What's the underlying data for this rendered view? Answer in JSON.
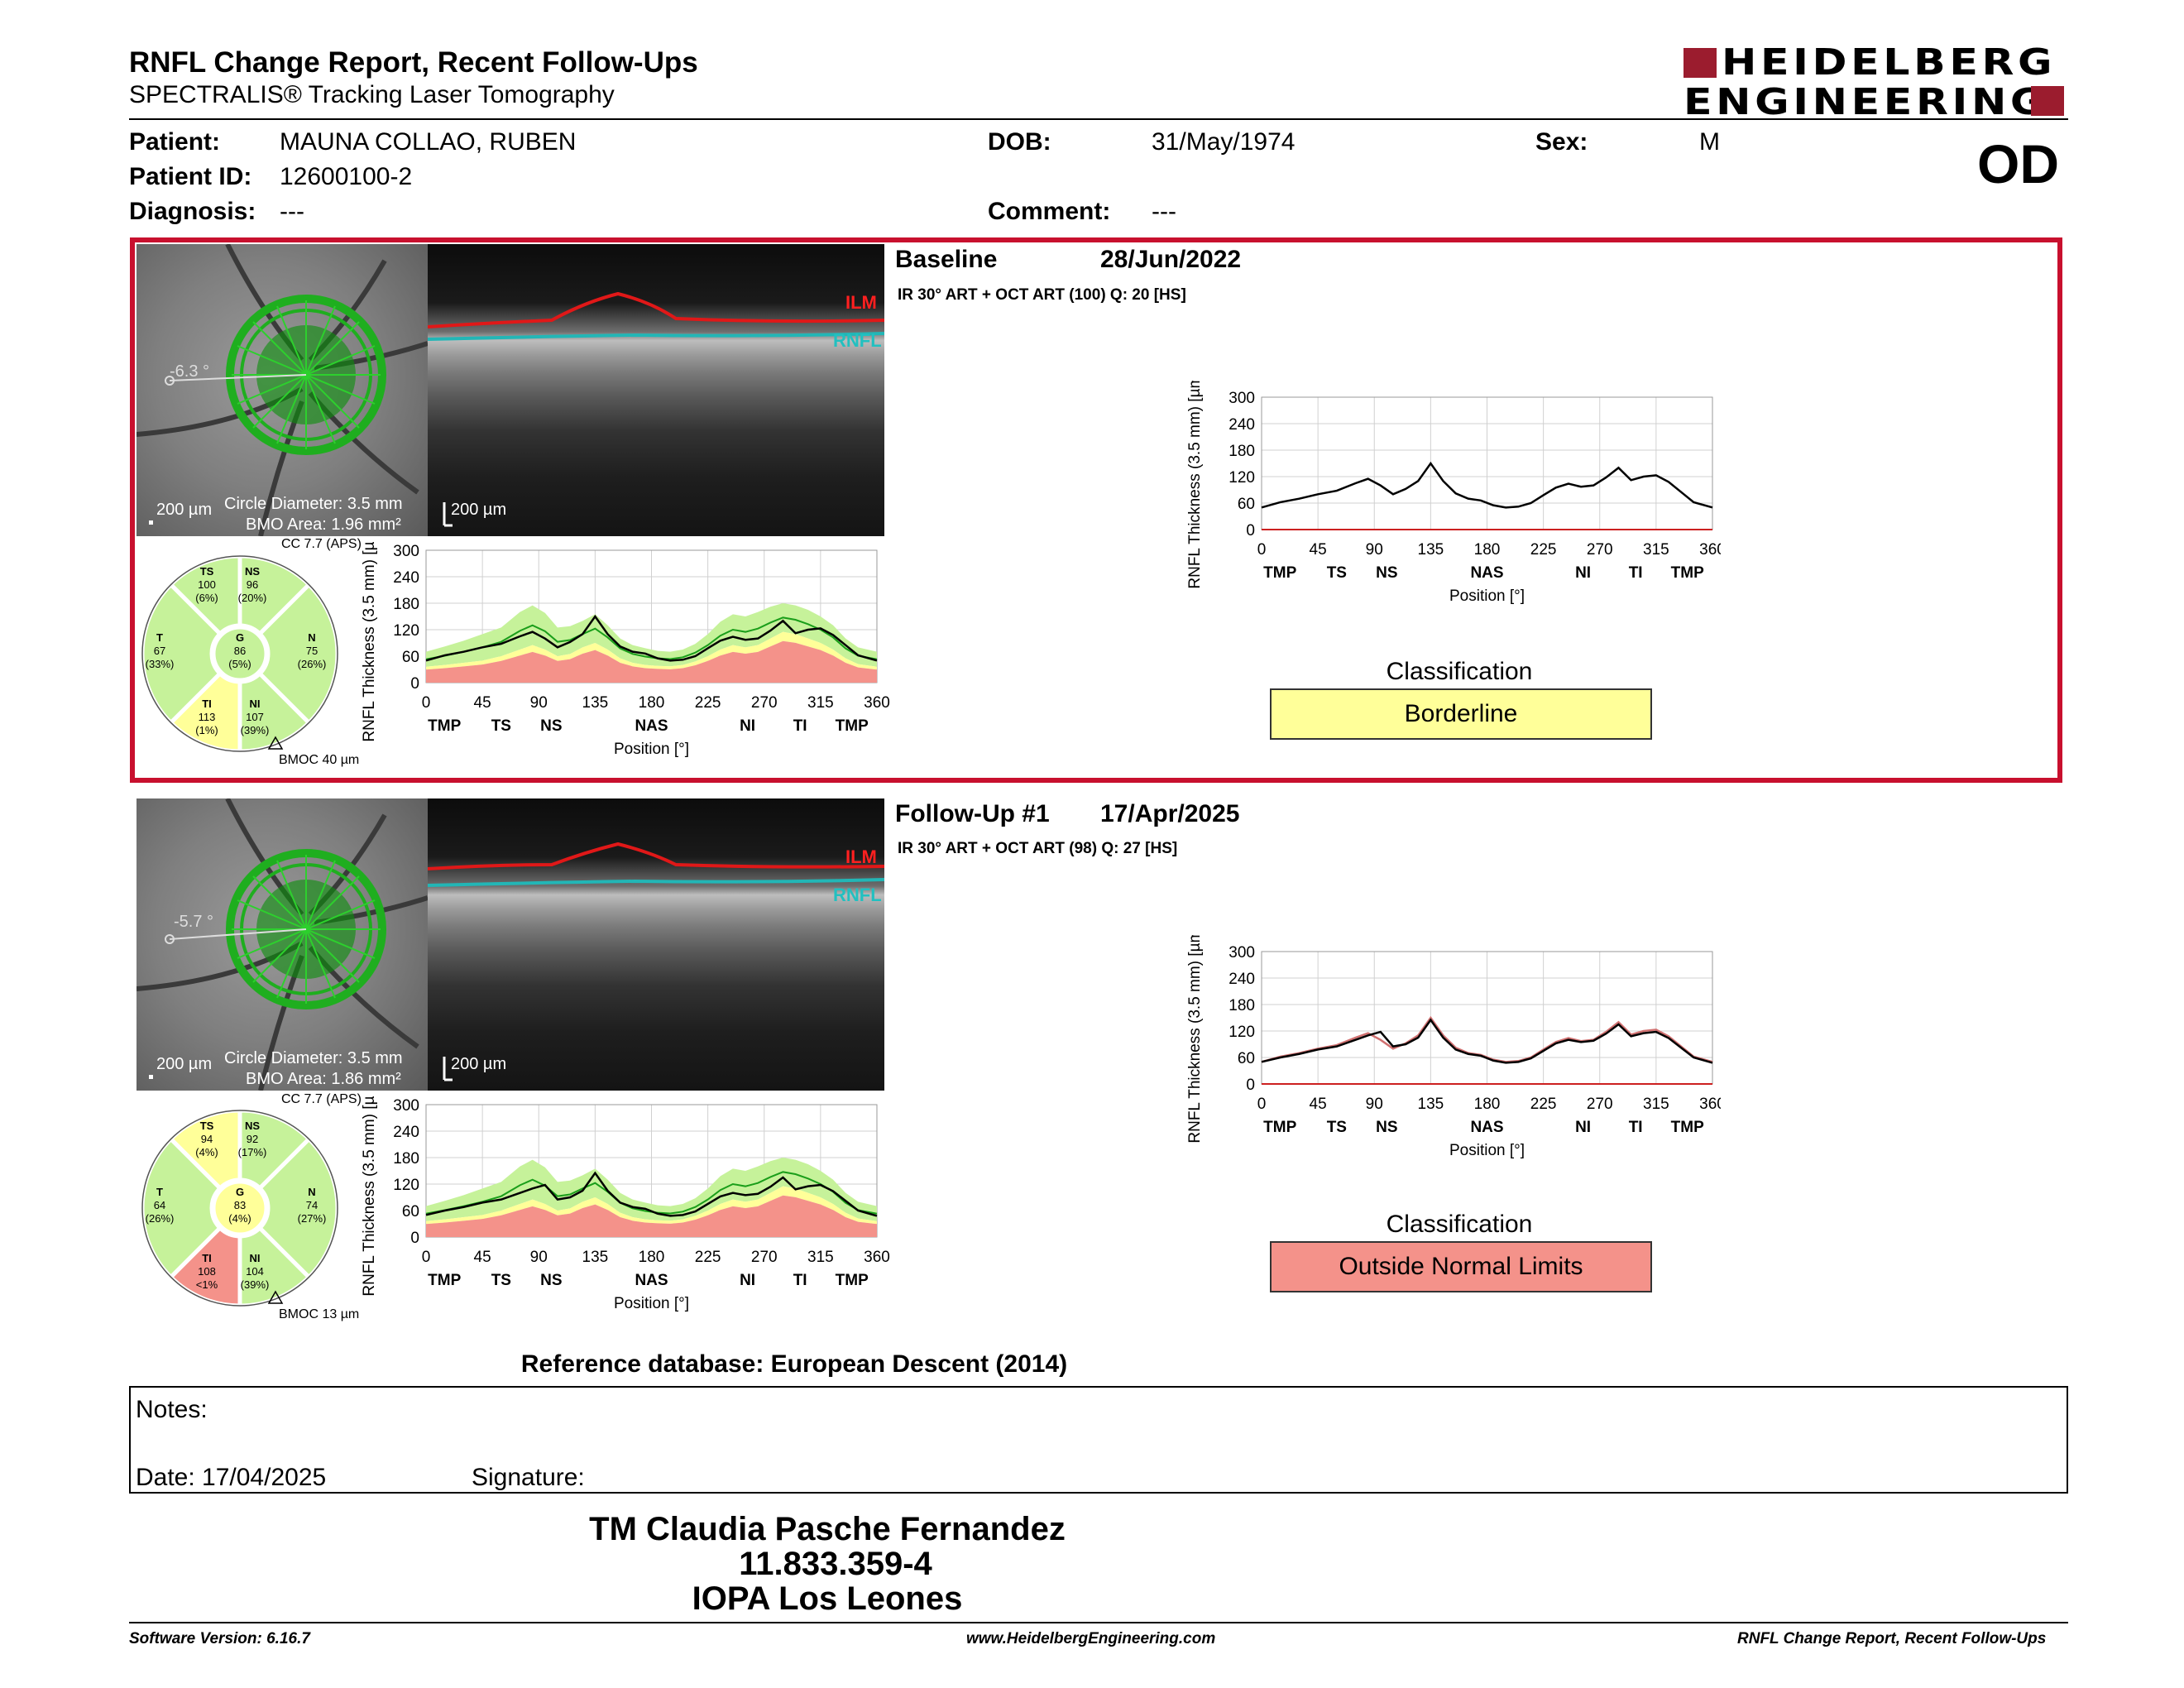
{
  "header": {
    "title": "RNFL Change Report, Recent Follow-Ups",
    "subtitle": "SPECTRALIS® Tracking Laser Tomography",
    "logo_line1": "HEIDELBERG",
    "logo_line2": "ENGINEERING"
  },
  "patient": {
    "patient_label": "Patient:",
    "patient_value": "MAUNA COLLAO, RUBEN",
    "id_label": "Patient ID:",
    "id_value": "12600100-2",
    "diagnosis_label": "Diagnosis:",
    "diagnosis_value": "---",
    "dob_label": "DOB:",
    "dob_value": "31/May/1974",
    "comment_label": "Comment:",
    "comment_value": "---",
    "sex_label": "Sex:",
    "sex_value": "M",
    "eye": "OD"
  },
  "colors": {
    "accent_red": "#c8102e",
    "brand": "#9b1c2e",
    "normal_green": "#c6f29a",
    "borderline_yellow": "#ffff99",
    "outside_red": "#f4928a",
    "circle_green": "#1faa1f"
  },
  "exams": [
    {
      "title": "Baseline",
      "date": "28/Jun/2022",
      "scan_info": "IR 30° ART + OCT ART (100) Q: 20 [HS]",
      "fundus_angle": "-6.3 °",
      "fundus_scale": "200 µm",
      "circle_diameter": "Circle Diameter: 3.5 mm",
      "bmo_area": "BMO Area: 1.96 mm²",
      "oct_scale": "200 µm",
      "ilm": "ILM",
      "rnfl": "RNFL",
      "cc": "CC 7.7 (APS)",
      "bmoc": "BMOC 40 µm",
      "sectors": {
        "TS": {
          "label": "TS",
          "value": "100",
          "pct": "(6%)",
          "status": "normal"
        },
        "NS": {
          "label": "NS",
          "value": "96",
          "pct": "(20%)",
          "status": "normal"
        },
        "T": {
          "label": "T",
          "value": "67",
          "pct": "(33%)",
          "status": "normal"
        },
        "G": {
          "label": "G",
          "value": "86",
          "pct": "(5%)",
          "status": "normal"
        },
        "N": {
          "label": "N",
          "value": "75",
          "pct": "(26%)",
          "status": "normal"
        },
        "TI": {
          "label": "TI",
          "value": "113",
          "pct": "(1%)",
          "status": "borderline"
        },
        "NI": {
          "label": "NI",
          "value": "107",
          "pct": "(39%)",
          "status": "normal"
        }
      },
      "classification_label": "Classification",
      "classification": "Borderline",
      "classification_color": "#ffff99"
    },
    {
      "title": "Follow-Up #1",
      "date": "17/Apr/2025",
      "scan_info": "IR 30° ART + OCT ART (98) Q: 27 [HS]",
      "fundus_angle": "-5.7 °",
      "fundus_scale": "200 µm",
      "circle_diameter": "Circle Diameter: 3.5 mm",
      "bmo_area": "BMO Area: 1.86 mm²",
      "oct_scale": "200 µm",
      "ilm": "ILM",
      "rnfl": "RNFL",
      "cc": "CC 7.7 (APS)",
      "bmoc": "BMOC 13 µm",
      "sectors": {
        "TS": {
          "label": "TS",
          "value": "94",
          "pct": "(4%)",
          "status": "borderline"
        },
        "NS": {
          "label": "NS",
          "value": "92",
          "pct": "(17%)",
          "status": "normal"
        },
        "T": {
          "label": "T",
          "value": "64",
          "pct": "(26%)",
          "status": "normal"
        },
        "G": {
          "label": "G",
          "value": "83",
          "pct": "(4%)",
          "status": "borderline"
        },
        "N": {
          "label": "N",
          "value": "74",
          "pct": "(27%)",
          "status": "normal"
        },
        "TI": {
          "label": "TI",
          "value": "108",
          "pct": "<1%",
          "status": "outside"
        },
        "NI": {
          "label": "NI",
          "value": "104",
          "pct": "(39%)",
          "status": "normal"
        }
      },
      "classification_label": "Classification",
      "classification": "Outside Normal Limits",
      "classification_color": "#f4928a"
    }
  ],
  "chart_data": [
    {
      "type": "line",
      "ylabel": "RNFL Thickness (3.5 mm) [µm]",
      "xlabel": "Position [°]",
      "ylim": [
        0,
        300
      ],
      "xlim": [
        0,
        360
      ],
      "yticks": [
        "0",
        "60",
        "120",
        "180",
        "240",
        "300"
      ],
      "xticks": [
        "0",
        "45",
        "90",
        "135",
        "180",
        "225",
        "270",
        "315",
        "360"
      ],
      "sector_labels": [
        "TMP",
        "TS",
        "NS",
        "NAS",
        "NI",
        "TI",
        "TMP"
      ],
      "x": [
        0,
        15,
        30,
        45,
        60,
        75,
        85,
        95,
        105,
        115,
        125,
        135,
        145,
        155,
        165,
        175,
        185,
        195,
        205,
        215,
        225,
        235,
        245,
        255,
        265,
        275,
        285,
        295,
        305,
        315,
        325,
        335,
        345,
        360
      ],
      "series": [
        {
          "values": [
            50,
            62,
            70,
            80,
            88,
            105,
            115,
            100,
            80,
            92,
            110,
            150,
            110,
            82,
            70,
            66,
            55,
            50,
            52,
            60,
            78,
            95,
            104,
            97,
            100,
            118,
            140,
            112,
            120,
            123,
            108,
            85,
            62,
            50
          ]
        }
      ],
      "normal_band": {
        "lower": [
          36,
          40,
          45,
          50,
          60,
          75,
          85,
          75,
          60,
          65,
          80,
          90,
          75,
          55,
          45,
          40,
          38,
          37,
          40,
          48,
          60,
          75,
          85,
          80,
          85,
          100,
          115,
          110,
          100,
          90,
          75,
          55,
          42,
          36
        ],
        "upper": [
          70,
          82,
          95,
          110,
          125,
          160,
          175,
          158,
          125,
          128,
          140,
          155,
          130,
          100,
          85,
          78,
          72,
          70,
          75,
          88,
          110,
          138,
          155,
          150,
          160,
          172,
          180,
          175,
          165,
          150,
          130,
          100,
          80,
          70
        ]
      }
    },
    {
      "type": "line",
      "ylabel": "RNFL Thickness (3.5 mm) [µm]",
      "xlabel": "Position [°]",
      "ylim": [
        0,
        300
      ],
      "xlim": [
        0,
        360
      ],
      "yticks": [
        "0",
        "60",
        "120",
        "180",
        "240",
        "300"
      ],
      "xticks": [
        "0",
        "45",
        "90",
        "135",
        "180",
        "225",
        "270",
        "315",
        "360"
      ],
      "sector_labels": [
        "TMP",
        "TS",
        "NS",
        "NAS",
        "NI",
        "TI",
        "TMP"
      ],
      "x": [
        0,
        15,
        30,
        45,
        60,
        75,
        85,
        95,
        105,
        115,
        125,
        135,
        145,
        155,
        165,
        175,
        185,
        195,
        205,
        215,
        225,
        235,
        245,
        255,
        265,
        275,
        285,
        295,
        305,
        315,
        325,
        335,
        345,
        360
      ],
      "series": [
        {
          "values": [
            50,
            60,
            68,
            78,
            85,
            100,
            110,
            118,
            85,
            90,
            105,
            145,
            105,
            78,
            68,
            64,
            53,
            48,
            50,
            58,
            75,
            92,
            100,
            95,
            98,
            114,
            135,
            108,
            115,
            118,
            104,
            82,
            60,
            48
          ]
        }
      ],
      "normal_band": {
        "lower": [
          36,
          40,
          45,
          50,
          60,
          75,
          85,
          75,
          60,
          65,
          80,
          90,
          75,
          55,
          45,
          40,
          38,
          37,
          40,
          48,
          60,
          75,
          85,
          80,
          85,
          100,
          115,
          110,
          100,
          90,
          75,
          55,
          42,
          36
        ],
        "upper": [
          70,
          82,
          95,
          110,
          125,
          160,
          175,
          158,
          125,
          128,
          140,
          155,
          130,
          100,
          85,
          78,
          72,
          70,
          75,
          88,
          110,
          138,
          155,
          150,
          160,
          172,
          180,
          175,
          165,
          150,
          130,
          100,
          80,
          70
        ]
      }
    },
    {
      "type": "line",
      "ylabel": "RNFL Thickness (3.5 mm) [µm]",
      "xlabel": "Position [°]",
      "ylim": [
        0,
        300
      ],
      "xlim": [
        0,
        360
      ],
      "yticks": [
        "0",
        "60",
        "120",
        "180",
        "240",
        "300"
      ],
      "xticks": [
        "0",
        "45",
        "90",
        "135",
        "180",
        "225",
        "270",
        "315",
        "360"
      ],
      "sector_labels": [
        "TMP",
        "TS",
        "NS",
        "NAS",
        "NI",
        "TI",
        "TMP"
      ],
      "x": [
        0,
        15,
        30,
        45,
        60,
        75,
        85,
        95,
        105,
        115,
        125,
        135,
        145,
        155,
        165,
        175,
        185,
        195,
        205,
        215,
        225,
        235,
        245,
        255,
        265,
        275,
        285,
        295,
        305,
        315,
        325,
        335,
        345,
        360
      ],
      "series": [
        {
          "values": [
            50,
            62,
            70,
            80,
            88,
            105,
            115,
            100,
            80,
            92,
            110,
            150,
            110,
            82,
            70,
            66,
            55,
            50,
            52,
            60,
            78,
            95,
            104,
            97,
            100,
            118,
            140,
            112,
            120,
            123,
            108,
            85,
            62,
            50
          ]
        }
      ]
    },
    {
      "type": "line",
      "ylabel": "RNFL Thickness (3.5 mm) [µm]",
      "xlabel": "Position [°]",
      "ylim": [
        0,
        300
      ],
      "xlim": [
        0,
        360
      ],
      "yticks": [
        "0",
        "60",
        "120",
        "180",
        "240",
        "300"
      ],
      "xticks": [
        "0",
        "45",
        "90",
        "135",
        "180",
        "225",
        "270",
        "315",
        "360"
      ],
      "sector_labels": [
        "TMP",
        "TS",
        "NS",
        "NAS",
        "NI",
        "TI",
        "TMP"
      ],
      "x": [
        0,
        15,
        30,
        45,
        60,
        75,
        85,
        95,
        105,
        115,
        125,
        135,
        145,
        155,
        165,
        175,
        185,
        195,
        205,
        215,
        225,
        235,
        245,
        255,
        265,
        275,
        285,
        295,
        305,
        315,
        325,
        335,
        345,
        360
      ],
      "series": [
        {
          "values": [
            50,
            62,
            70,
            80,
            88,
            105,
            115,
            100,
            80,
            92,
            110,
            150,
            110,
            82,
            70,
            66,
            55,
            50,
            52,
            60,
            78,
            95,
            104,
            97,
            100,
            118,
            140,
            112,
            120,
            123,
            108,
            85,
            62,
            50
          ]
        },
        {
          "values": [
            50,
            60,
            68,
            78,
            85,
            100,
            110,
            118,
            85,
            90,
            105,
            145,
            105,
            78,
            68,
            64,
            53,
            48,
            50,
            58,
            75,
            92,
            100,
            95,
            98,
            114,
            135,
            108,
            115,
            118,
            104,
            82,
            60,
            48
          ]
        }
      ]
    }
  ],
  "footer": {
    "reference": "Reference database: European Descent (2014)",
    "notes_label": "Notes:",
    "date_label": "Date: 17/04/2025",
    "signature_label": "Signature:",
    "sig_name": "TM Claudia Pasche Fernandez",
    "sig_id": "11.833.359-4",
    "sig_org": "IOPA Los Leones",
    "software": "Software Version: 6.16.7",
    "website": "www.HeidelbergEngineering.com",
    "report_name": "RNFL Change Report, Recent Follow-Ups"
  }
}
